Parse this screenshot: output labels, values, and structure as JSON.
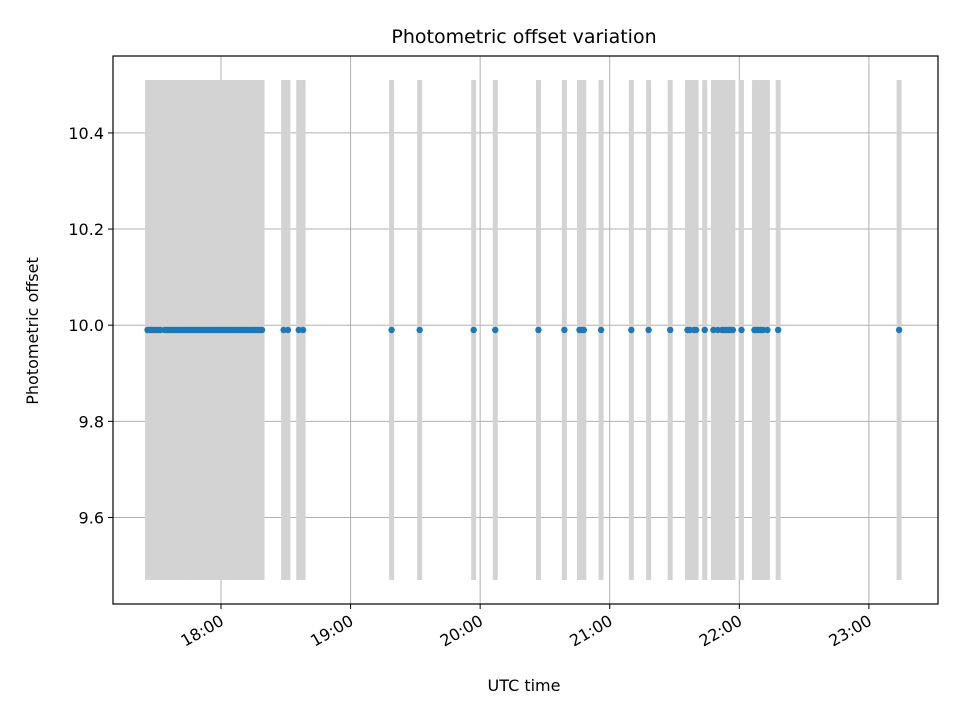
{
  "chart_data": {
    "type": "scatter",
    "title": "Photometric offset variation",
    "xlabel": "UTC time",
    "ylabel": "Photometric offset",
    "x_axis_kind": "time (UTC)",
    "xlim": [
      "17:10",
      "23:32"
    ],
    "ylim": [
      9.42,
      10.56
    ],
    "xticks": [
      "18:00",
      "19:00",
      "20:00",
      "21:00",
      "22:00",
      "23:00"
    ],
    "yticks": [
      "9.6",
      "9.8",
      "10.0",
      "10.2",
      "10.4"
    ],
    "yticks_values": [
      9.6,
      9.8,
      10.0,
      10.2,
      10.4
    ],
    "grid": true,
    "legend": "none",
    "band_range": [
      9.47,
      10.51
    ],
    "series": [
      {
        "values": [
          9.99,
          9.99,
          9.99,
          9.99,
          9.99,
          9.99,
          9.99,
          9.99,
          9.99,
          9.99,
          9.99,
          9.99,
          9.99,
          9.99,
          9.99,
          9.99,
          9.99,
          9.99,
          9.99,
          9.99,
          9.99,
          9.99,
          9.99,
          9.99,
          9.99,
          9.99,
          9.99,
          9.99,
          9.99,
          9.99,
          9.99,
          9.99,
          9.99,
          9.99,
          9.99,
          9.99,
          9.99,
          9.99,
          9.99,
          9.99,
          9.99,
          9.99,
          9.99,
          9.99,
          9.99,
          9.99,
          9.99,
          9.99,
          9.99,
          9.99,
          9.99,
          9.99,
          9.99,
          9.99,
          9.99,
          9.99,
          9.99,
          9.99,
          9.99,
          9.99,
          9.99,
          9.99,
          9.99,
          9.99,
          9.99,
          9.99,
          9.99,
          9.99,
          9.99,
          9.99,
          9.99,
          9.99,
          9.99,
          9.99,
          9.99,
          9.99,
          9.99,
          9.99,
          9.99,
          9.99,
          9.99,
          9.99,
          9.99,
          9.99,
          9.99,
          9.99,
          9.99,
          9.99,
          9.99,
          9.99,
          9.99,
          9.99
        ],
        "x": [
          "17:26",
          "17:27",
          "17:28",
          "17:29",
          "17:30",
          "17:31",
          "17:32",
          "17:34",
          "17:35",
          "17:36",
          "17:37",
          "17:38",
          "17:39",
          "17:40",
          "17:41",
          "17:42",
          "17:43",
          "17:44",
          "17:45",
          "17:46",
          "17:47",
          "17:48",
          "17:49",
          "17:50",
          "17:51",
          "17:52",
          "17:53",
          "17:54",
          "17:55",
          "17:56",
          "17:57",
          "17:58",
          "17:59",
          "18:00",
          "18:01",
          "18:02",
          "18:03",
          "18:04",
          "18:05",
          "18:06",
          "18:07",
          "18:08",
          "18:09",
          "18:10",
          "18:11",
          "18:12",
          "18:13",
          "18:14",
          "18:15",
          "18:16",
          "18:17",
          "18:18",
          "18:19",
          "18:29",
          "18:31",
          "18:36",
          "18:38",
          "19:19",
          "19:32",
          "19:57",
          "20:07",
          "20:27",
          "20:39",
          "20:46",
          "20:47",
          "20:48",
          "20:56",
          "21:10",
          "21:18",
          "21:28",
          "21:36",
          "21:37",
          "21:39",
          "21:40",
          "21:44",
          "21:48",
          "21:50",
          "21:52",
          "21:53",
          "21:54",
          "21:55",
          "21:56",
          "21:57",
          "22:01",
          "22:07",
          "22:08",
          "22:09",
          "22:10",
          "22:11",
          "22:13",
          "22:18",
          "23:14"
        ]
      }
    ]
  }
}
